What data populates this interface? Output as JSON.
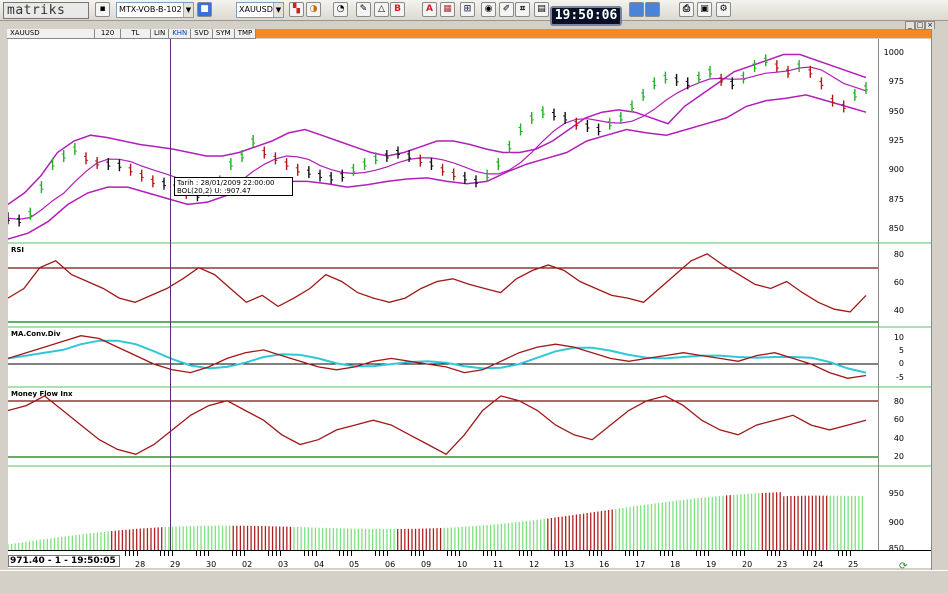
{
  "app": {
    "logo": "matriks",
    "clock": "19:50:06"
  },
  "toolbar": {
    "layout_combo": "MTX-VOB-B-102",
    "symbol_combo": "XAUUSD",
    "bold_btn": "B",
    "alert_btn": "A"
  },
  "chart_tabs": [
    "XAUUSD",
    "120",
    "TL",
    "LIN",
    "KHN",
    "SVD",
    "SYM",
    "TMP"
  ],
  "panels": {
    "rsi": "RSI",
    "macd": "MA.Conv.Div",
    "mfi": "Money Flow Inx"
  },
  "tooltip": {
    "line1": "Tarih : 28/01/2009 22:00:00",
    "line2": "BOL(20,2) U:   :907.47"
  },
  "status": "971.40 - 1 - 19:50:05",
  "axis": {
    "price": [
      "1000",
      "975",
      "950",
      "925",
      "900",
      "875",
      "850"
    ],
    "rsi": [
      "80",
      "60",
      "40"
    ],
    "macd": [
      "10",
      "5",
      "0",
      "-5"
    ],
    "mfi": [
      "80",
      "60",
      "40",
      "20"
    ],
    "vol": [
      "950",
      "900",
      "850"
    ]
  },
  "xaxis_labels": [
    "28",
    "29",
    "30",
    "02",
    "03",
    "04",
    "05",
    "06",
    "09",
    "10",
    "11",
    "12",
    "13",
    "16",
    "17",
    "18",
    "19",
    "20",
    "23",
    "24",
    "25"
  ],
  "chart_data": {
    "type": "line",
    "symbol": "XAUUSD",
    "ohlc_close": [
      858,
      856,
      862,
      885,
      905,
      912,
      918,
      910,
      906,
      905,
      904,
      900,
      895,
      890,
      888,
      885,
      880,
      878,
      882,
      890,
      905,
      912,
      925,
      915,
      910,
      905,
      900,
      898,
      895,
      893,
      895,
      900,
      905,
      910,
      912,
      915,
      912,
      908,
      905,
      900,
      896,
      893,
      890,
      895,
      905,
      920,
      935,
      945,
      950,
      948,
      945,
      940,
      938,
      935,
      940,
      945,
      955,
      965,
      975,
      980,
      978,
      975,
      980,
      985,
      978,
      975,
      980,
      990,
      995,
      990,
      985,
      990,
      985,
      975,
      960,
      955,
      965,
      971
    ],
    "bollinger_upper": [
      870,
      880,
      895,
      915,
      925,
      930,
      928,
      925,
      922,
      920,
      918,
      915,
      912,
      912,
      915,
      920,
      925,
      932,
      935,
      930,
      925,
      920,
      915,
      912,
      915,
      920,
      925,
      925,
      922,
      918,
      915,
      915,
      918,
      925,
      935,
      945,
      950,
      952,
      950,
      945,
      940,
      955,
      965,
      975,
      985,
      990,
      995,
      1000,
      1000,
      995,
      990,
      985,
      980
    ],
    "bollinger_lower": [
      840,
      845,
      855,
      870,
      880,
      885,
      885,
      880,
      875,
      870,
      872,
      878,
      885,
      888,
      890,
      890,
      888,
      885,
      887,
      890,
      892,
      893,
      890,
      888,
      890,
      898,
      905,
      910,
      915,
      925,
      930,
      935,
      932,
      930,
      935,
      940,
      945,
      955,
      960,
      962,
      965,
      960,
      955,
      950
    ],
    "rsi": [
      48,
      55,
      70,
      75,
      65,
      60,
      55,
      48,
      45,
      50,
      55,
      62,
      70,
      65,
      55,
      45,
      50,
      42,
      48,
      55,
      65,
      60,
      52,
      48,
      45,
      48,
      55,
      60,
      62,
      58,
      55,
      52,
      62,
      68,
      72,
      68,
      60,
      55,
      50,
      48,
      45,
      55,
      65,
      75,
      80,
      72,
      65,
      58,
      55,
      60,
      52,
      45,
      40,
      38,
      50
    ],
    "macd": [
      2,
      4,
      6,
      8,
      10,
      9,
      6,
      3,
      0,
      -2,
      -3,
      -1,
      2,
      4,
      5,
      3,
      1,
      -1,
      -2,
      -1,
      1,
      2,
      1,
      0,
      -1,
      -3,
      -2,
      1,
      4,
      6,
      7,
      6,
      4,
      2,
      1,
      2,
      3,
      4,
      3,
      2,
      1,
      3,
      4,
      2,
      0,
      -3,
      -5,
      -4
    ],
    "mfi": [
      70,
      75,
      85,
      70,
      55,
      40,
      30,
      25,
      35,
      50,
      65,
      75,
      80,
      70,
      60,
      45,
      35,
      40,
      50,
      55,
      60,
      55,
      45,
      35,
      25,
      45,
      70,
      85,
      80,
      70,
      55,
      45,
      40,
      55,
      70,
      80,
      85,
      75,
      60,
      50,
      45,
      55,
      60,
      65,
      55,
      50,
      55,
      60
    ],
    "yrange_price": [
      840,
      1010
    ]
  }
}
